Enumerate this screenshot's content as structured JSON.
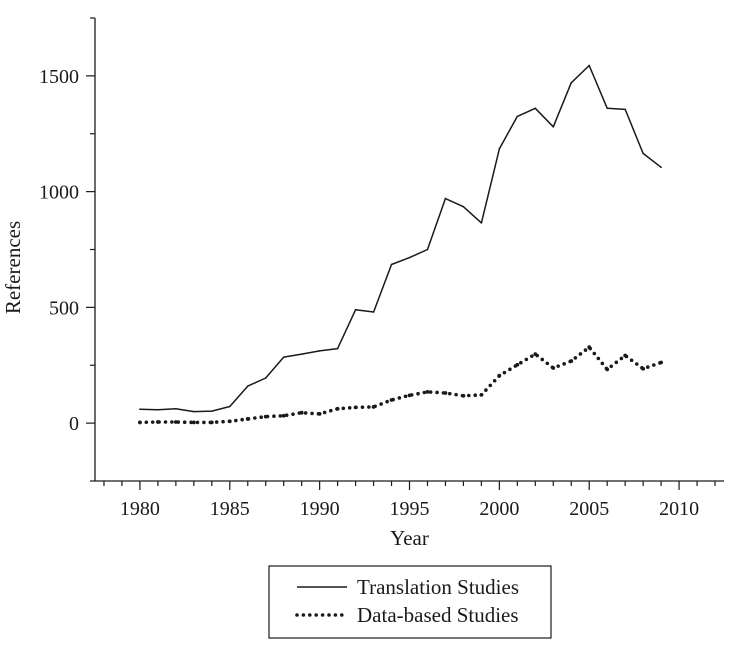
{
  "chart_data": {
    "type": "line",
    "title": "",
    "xlabel": "Year",
    "ylabel": "References",
    "xlim": [
      1977.5,
      2012.5
    ],
    "ylim": [
      -250,
      1750
    ],
    "xticks": [
      1980,
      1985,
      1990,
      1995,
      2000,
      2005,
      2010
    ],
    "yticks": [
      0,
      500,
      1000,
      1500
    ],
    "grid": false,
    "legend": "bottom-center",
    "x": [
      1980,
      1981,
      1982,
      1983,
      1984,
      1985,
      1986,
      1987,
      1988,
      1989,
      1990,
      1991,
      1992,
      1993,
      1994,
      1995,
      1996,
      1997,
      1998,
      1999,
      2000,
      2001,
      2002,
      2003,
      2004,
      2005,
      2006,
      2007,
      2008,
      2009
    ],
    "series": [
      {
        "name": "Translation Studies",
        "style": "solid",
        "values": [
          60,
          58,
          62,
          50,
          52,
          72,
          160,
          195,
          285,
          298,
          312,
          322,
          490,
          480,
          685,
          715,
          750,
          970,
          935,
          865,
          1185,
          1325,
          1360,
          1280,
          1470,
          1545,
          1360,
          1355,
          1165,
          1105
        ]
      },
      {
        "name": "Data-based Studies",
        "style": "dotted",
        "values": [
          3,
          5,
          5,
          3,
          3,
          8,
          18,
          28,
          32,
          45,
          40,
          62,
          68,
          70,
          100,
          120,
          135,
          130,
          118,
          122,
          205,
          252,
          298,
          238,
          268,
          328,
          232,
          292,
          235,
          262
        ]
      }
    ]
  }
}
